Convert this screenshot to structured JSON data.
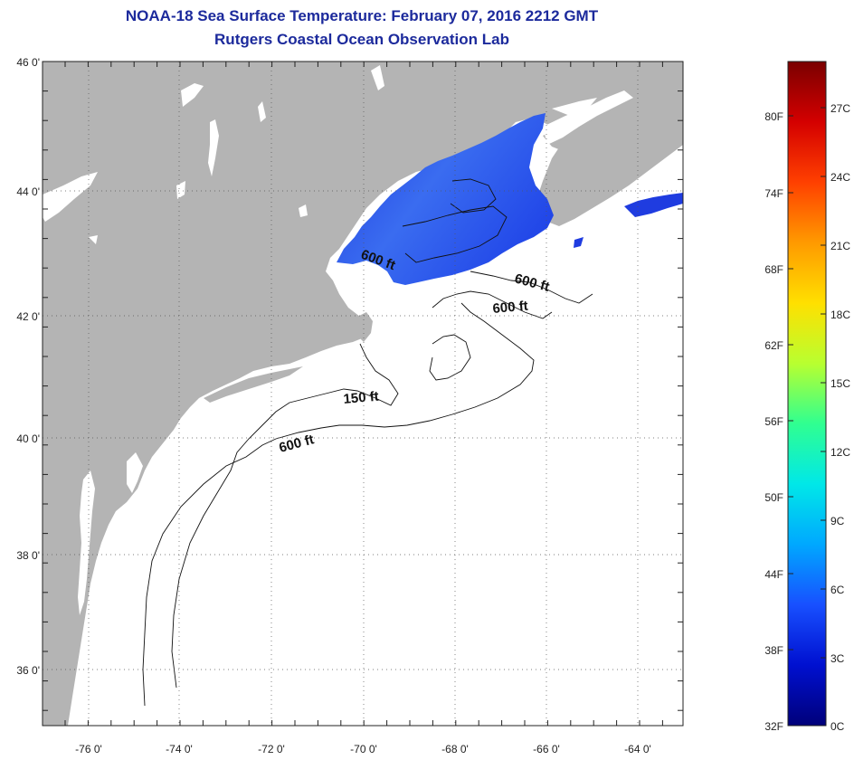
{
  "header": {
    "title": "NOAA-18 Sea Surface Temperature:  February 07, 2016 2212 GMT",
    "subtitle": "Rutgers Coastal Ocean Observation Lab"
  },
  "map": {
    "lat_labels": [
      "46 0'",
      "44 0'",
      "42 0'",
      "40 0'",
      "38 0'",
      "36 0'"
    ],
    "lon_labels": [
      "-76 0'",
      "-74 0'",
      "-72 0'",
      "-70 0'",
      "-68 0'",
      "-66 0'",
      "-64 0'"
    ],
    "contour_labels": [
      "600 ft",
      "600 ft",
      "600 ft",
      "150 ft",
      "600 ft"
    ],
    "colors": {
      "land": "#b4b4b4",
      "ocean": "#ffffff",
      "sst_core": "#2b5be6",
      "sst_edge": "#1a2fd8"
    }
  },
  "colorbar": {
    "fahrenheit_labels": [
      "80F",
      "74F",
      "68F",
      "62F",
      "56F",
      "50F",
      "44F",
      "38F",
      "32F"
    ],
    "celsius_labels": [
      "27C",
      "24C",
      "21C",
      "18C",
      "15C",
      "12C",
      "9C",
      "6C",
      "3C",
      "0C"
    ],
    "colors": [
      "#7a0000",
      "#d40000",
      "#ff4000",
      "#ff9a00",
      "#ffe000",
      "#b8ff30",
      "#30ff90",
      "#00e8e8",
      "#00a8ff",
      "#1850ff",
      "#0010d0",
      "#00007a"
    ]
  }
}
